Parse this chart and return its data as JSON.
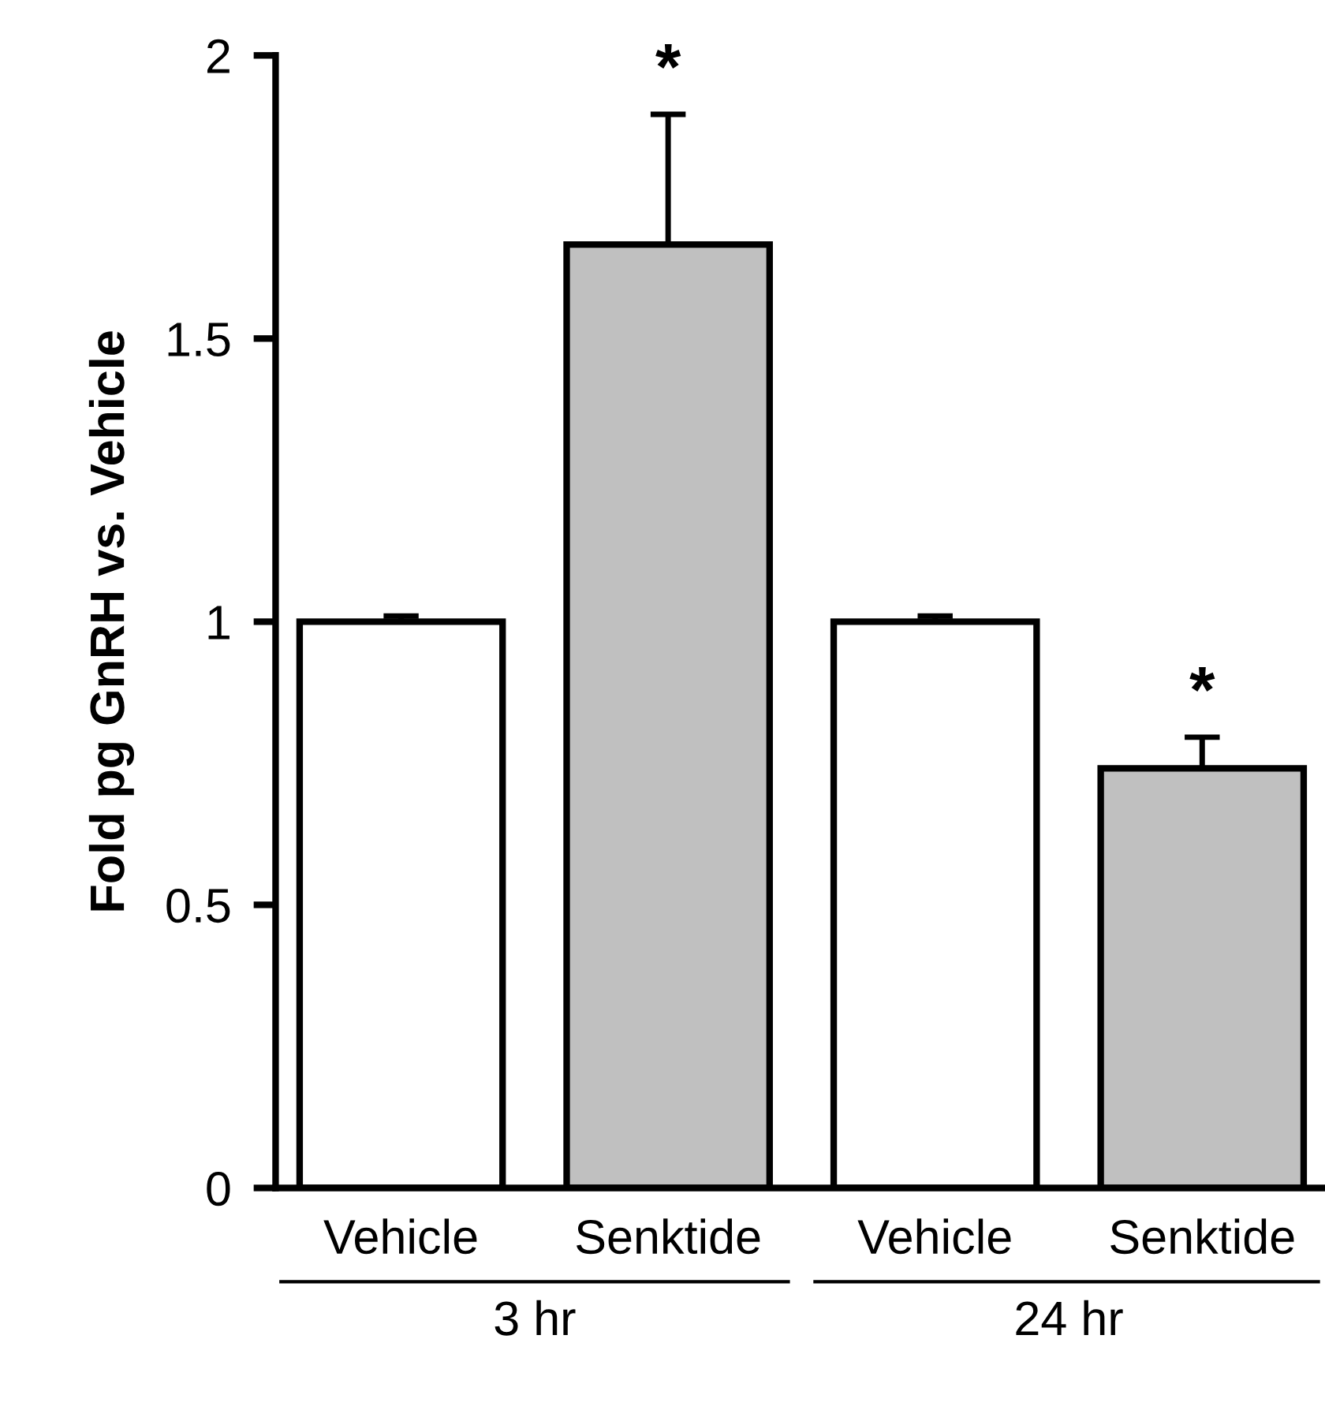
{
  "chart_data": {
    "type": "bar",
    "ylabel": "Fold pg GnRH vs. Vehicle",
    "categories": [
      "Vehicle",
      "Senktide",
      "Vehicle",
      "Senktide"
    ],
    "values": [
      1.0,
      1.666,
      1.0,
      0.741
    ],
    "errors": [
      0.01,
      0.23,
      0.01,
      0.055
    ],
    "colors": [
      "#ffffff",
      "#c0c0c0",
      "#ffffff",
      "#c0c0c0"
    ],
    "ylim": [
      0,
      2
    ],
    "yticks": [
      0,
      0.5,
      1,
      1.5,
      2
    ],
    "grid": false,
    "annotations": [
      {
        "text": "*",
        "y": 1.896
      },
      {
        "text": "*",
        "y": 0.796
      },
      "3 hr",
      "24 hr"
    ]
  }
}
